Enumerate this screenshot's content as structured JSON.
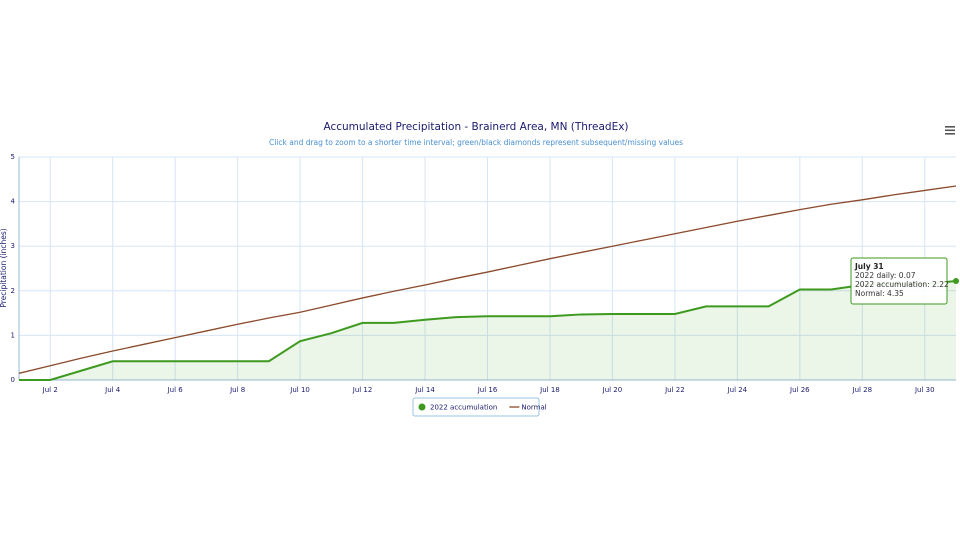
{
  "chart_data": {
    "type": "line",
    "title": "Accumulated Precipitation - Brainerd Area, MN (ThreadEx)",
    "subtitle": "Click and drag to zoom to a shorter time interval; green/black diamonds represent subsequent/missing values",
    "y_label": "Precipitation (inches)",
    "categories": [
      null,
      "Jul 2",
      null,
      "Jul 4",
      null,
      "Jul 6",
      null,
      "Jul 8",
      null,
      "Jul 10",
      null,
      "Jul 12",
      null,
      "Jul 14",
      null,
      "Jul 16",
      null,
      "Jul 18",
      null,
      "Jul 20",
      null,
      "Jul 22",
      null,
      "Jul 24",
      null,
      "Jul 26",
      null,
      "Jul 28",
      null,
      "Jul 30",
      null
    ],
    "series": [
      {
        "name": "2022 accumulation",
        "color": "#3d9a1f",
        "area": true,
        "values": [
          0,
          0,
          0.21,
          0.42,
          0.42,
          0.42,
          0.42,
          0.42,
          0.42,
          0.87,
          1.05,
          1.28,
          1.28,
          1.35,
          1.41,
          1.43,
          1.43,
          1.43,
          1.47,
          1.48,
          1.48,
          1.48,
          1.65,
          1.65,
          1.65,
          2.03,
          2.03,
          2.13,
          2.15,
          2.15,
          2.22
        ]
      },
      {
        "name": "Normal",
        "color": "#8b4a2b",
        "values": [
          0.15,
          0.32,
          0.49,
          0.65,
          0.8,
          0.95,
          1.1,
          1.25,
          1.39,
          1.52,
          1.68,
          1.84,
          1.99,
          2.13,
          2.28,
          2.42,
          2.57,
          2.72,
          2.86,
          3.0,
          3.14,
          3.28,
          3.42,
          3.56,
          3.69,
          3.82,
          3.94,
          4.04,
          4.15,
          4.25,
          4.35
        ]
      }
    ],
    "ylim": [
      0,
      5
    ],
    "yticks": [
      0,
      1,
      2,
      3,
      4,
      5
    ],
    "grid": true,
    "tooltip": {
      "title": "July 31",
      "lines": [
        "2022 daily: 0.07",
        "2022 accumulation: 2.22",
        "Normal: 4.35"
      ]
    }
  }
}
